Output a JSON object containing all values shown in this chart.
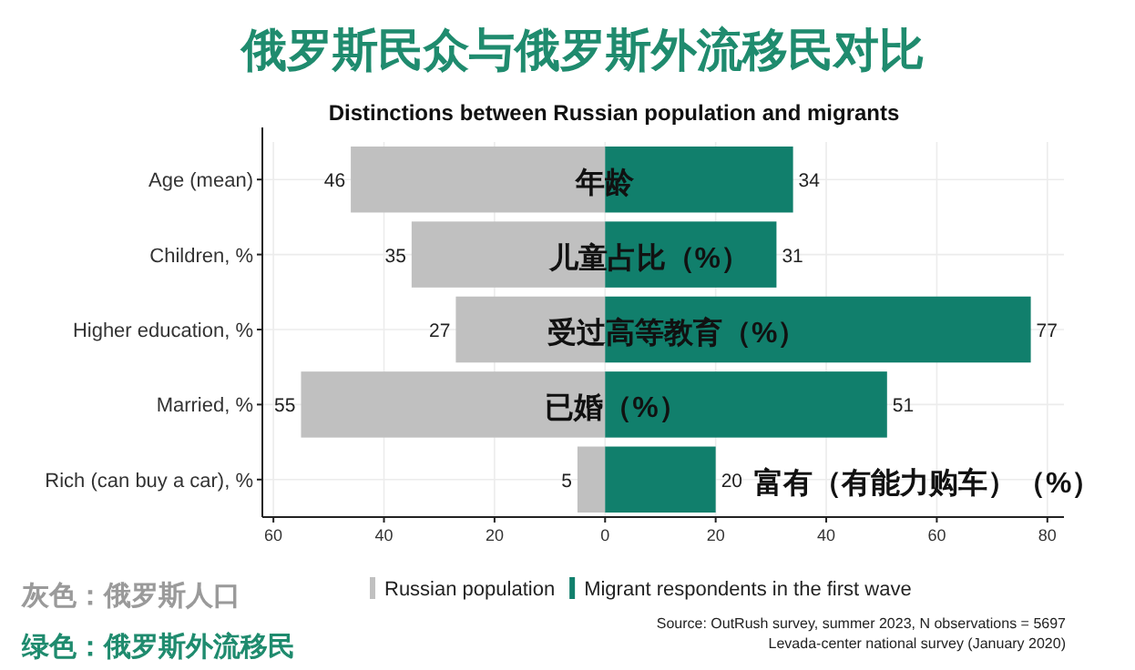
{
  "chart_data": {
    "type": "bar",
    "orientation": "horizontal",
    "title": "俄罗斯民众与俄罗斯外流移民对比",
    "subtitle": "Distinctions between Russian population and migrants",
    "categories": [
      "Age (mean)",
      "Children, %",
      "Higher education, %",
      "Married, %",
      "Rich (can buy a car), %"
    ],
    "series": [
      {
        "name": "Russian population",
        "color": "#c0c0c0",
        "values": [
          46,
          35,
          27,
          55,
          5
        ],
        "base": [
          -46,
          -35,
          -27,
          -55,
          -5
        ]
      },
      {
        "name": "Migrant respondents in the first wave",
        "color": "#117f6c",
        "values": [
          34,
          31,
          77,
          51,
          20
        ]
      }
    ],
    "data_labels": true,
    "xlim": [
      -62,
      83
    ],
    "xticks": [
      {
        "value": -60,
        "label": "60"
      },
      {
        "value": -40,
        "label": "40"
      },
      {
        "value": -20,
        "label": "20"
      },
      0,
      20,
      40,
      60,
      80
    ],
    "grid": true,
    "legend": "bottom",
    "annotations": [
      {
        "text": "年龄",
        "x": 0,
        "y": "Age (mean)"
      },
      {
        "text": "儿童占比（%）",
        "x": 8,
        "y": "Children, %"
      },
      {
        "text": "受过高等教育（%）",
        "x": 13,
        "y": "Higher education, %"
      },
      {
        "text": "已婚（%）",
        "x": 2,
        "y": "Married, %"
      },
      "富有（有能力购车）（%）",
      "灰色：俄罗斯人口",
      "绿色：俄罗斯外流移民",
      "Source: OutRush survey, summer 2023, N observations = 5697",
      "Levada-center national survey (January 2020)"
    ]
  }
}
